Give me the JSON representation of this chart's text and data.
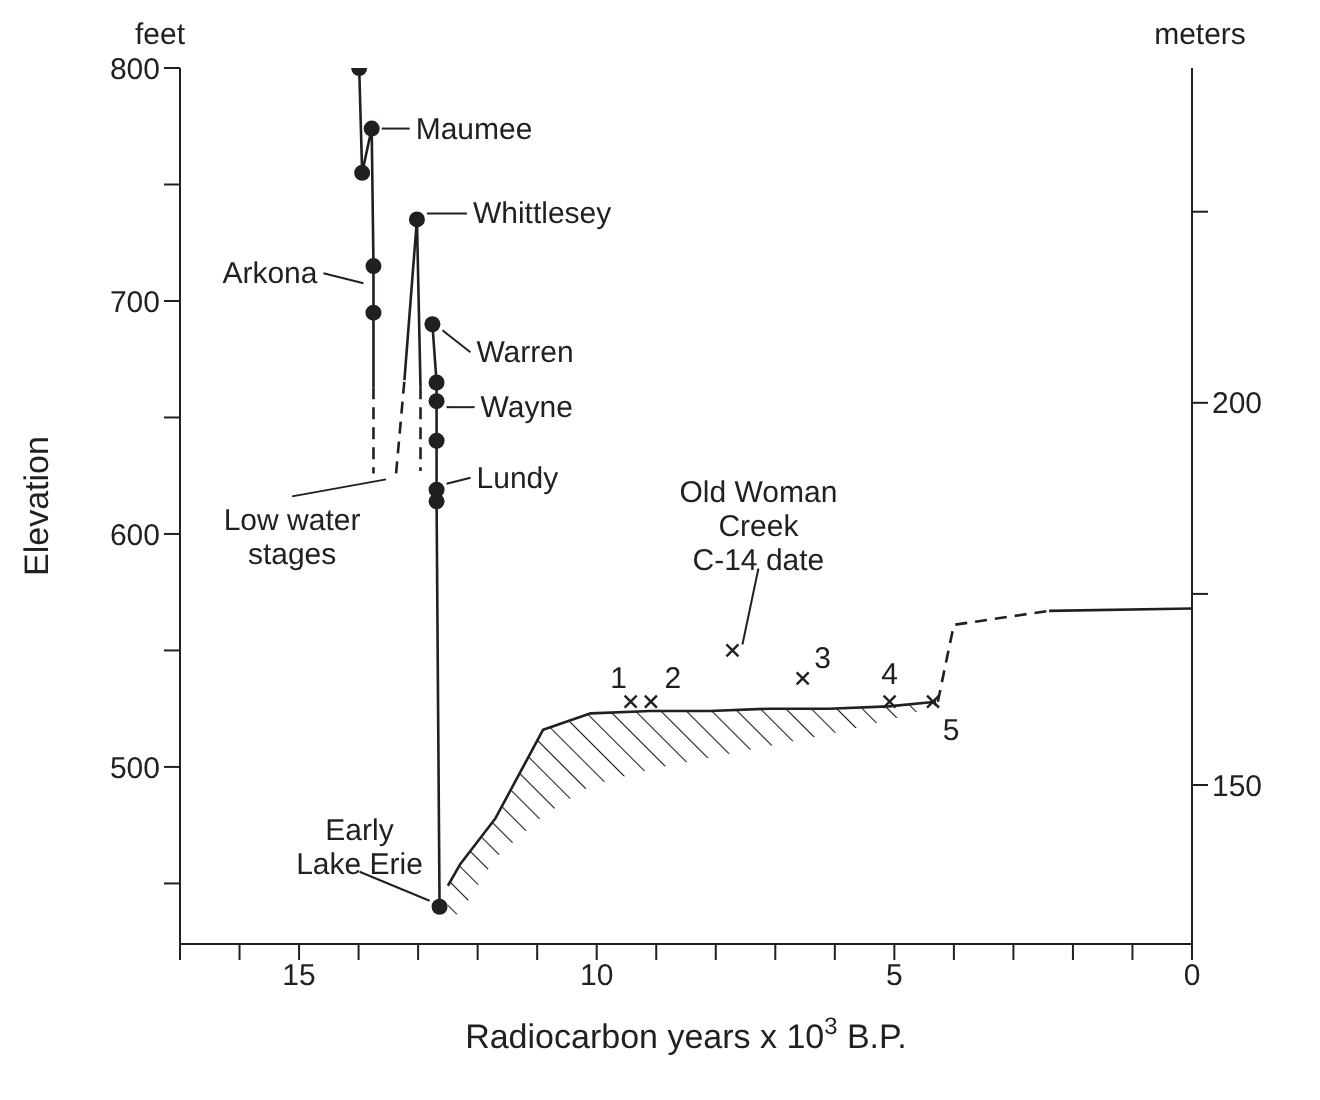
{
  "chart_data": {
    "type": "line",
    "xlabel": "Radiocarbon years x 10$^{3}$ B.P.",
    "ylabel": "Elevation",
    "y2label": "meters",
    "xlim": [
      17,
      0
    ],
    "xticks": [
      {
        "value": 17,
        "label": null
      },
      {
        "value": 16,
        "label": null
      },
      15,
      {
        "value": 14,
        "label": null
      },
      {
        "value": 13,
        "label": null
      },
      {
        "value": 12,
        "label": null
      },
      {
        "value": 11,
        "label": null
      },
      10,
      {
        "value": 9,
        "label": null
      },
      {
        "value": 8,
        "label": null
      },
      {
        "value": 7,
        "label": null
      },
      {
        "value": 6,
        "label": null
      },
      5,
      {
        "value": 4,
        "label": null
      },
      {
        "value": 3,
        "label": null
      },
      {
        "value": 2,
        "label": null
      },
      {
        "value": 1,
        "label": null
      },
      0
    ],
    "ylim": [
      424,
      800
    ],
    "yticks": [
      {
        "value": 450,
        "label": null
      },
      500,
      {
        "value": 550,
        "label": null
      },
      600,
      {
        "value": 650,
        "label": null
      },
      700,
      {
        "value": 750,
        "label": null
      },
      800
    ],
    "y2lim": [
      129.2,
      243.8
    ],
    "y2ticks": [
      150,
      {
        "value": 175,
        "label": null
      },
      200,
      {
        "value": 225,
        "label": null
      }
    ],
    "grid": false,
    "series": [
      {
        "color": "#231f20",
        "line_style": "solid",
        "marker": "none",
        "x": [
          13.99,
          13.94,
          13.78,
          13.75,
          13.75,
          13.75
        ],
        "values": [
          800,
          755,
          774,
          715,
          695,
          663
        ]
      },
      {
        "color": "#231f20",
        "line_style": "dashed",
        "marker": "none",
        "x": [
          13.75,
          13.75
        ],
        "values": [
          663,
          626
        ]
      },
      {
        "color": "#231f20",
        "line_style": "dashed",
        "marker": "none",
        "x": [
          13.37,
          13.23
        ],
        "values": [
          626,
          666
        ]
      },
      {
        "color": "#231f20",
        "line_style": "solid",
        "marker": "none",
        "x": [
          13.23,
          13.02,
          12.96
        ],
        "values": [
          666,
          735,
          663
        ]
      },
      {
        "color": "#231f20",
        "line_style": "dashed",
        "marker": "none",
        "x": [
          12.96,
          12.96
        ],
        "values": [
          663,
          627
        ]
      },
      {
        "color": "#231f20",
        "line_style": "solid",
        "marker": "none",
        "x": [
          12.76,
          12.69,
          12.69,
          12.69,
          12.69,
          12.69,
          12.64
        ],
        "values": [
          690,
          665,
          657,
          640,
          619,
          614,
          440
        ]
      },
      {
        "type": "scatter",
        "color": "#231f20",
        "marker": "circle",
        "x": [
          13.99,
          13.94,
          13.78,
          13.75,
          13.75,
          13.02,
          12.76,
          12.69,
          12.69,
          12.69,
          12.69,
          12.69,
          12.64
        ],
        "values": [
          800,
          755,
          774,
          715,
          695,
          735,
          690,
          665,
          657,
          640,
          619,
          614,
          440
        ]
      },
      {
        "color": "#231f20",
        "line_style": "solid",
        "marker": "none",
        "x": [
          12.5,
          12.3,
          11.7,
          11.3,
          10.9,
          10.1,
          9.1,
          8.1,
          7.1,
          6.1,
          5.1,
          4.3
        ],
        "values": [
          449,
          458,
          478,
          497,
          516,
          523,
          524,
          524,
          525,
          525,
          526,
          528
        ],
        "lower": [
          436,
          437,
          461,
          470,
          479,
          492,
          499,
          504,
          509,
          514,
          520,
          526
        ],
        "upper": [
          449,
          458,
          478,
          497,
          516,
          523,
          524,
          524,
          525,
          525,
          526,
          528
        ]
      },
      {
        "color": "#231f20",
        "line_style": "dashed",
        "marker": "none",
        "x": [
          4.27,
          4.0,
          2.4
        ],
        "values": [
          528,
          561,
          567
        ]
      },
      {
        "color": "#231f20",
        "line_style": "solid",
        "marker": "none",
        "x": [
          2.4,
          0
        ],
        "values": [
          567,
          568
        ]
      },
      {
        "type": "scatter",
        "color": "#231f20",
        "marker": "cross",
        "x": [
          9.43,
          9.09,
          7.72,
          6.54,
          5.08,
          4.35
        ],
        "values": [
          528,
          528,
          550,
          538,
          528,
          528
        ]
      }
    ],
    "annotations": [
      "feet",
      {
        "text": "Maumee",
        "x": 13.78,
        "y": 774
      },
      {
        "text": "Arkona",
        "x": 13.75,
        "y": 705
      },
      {
        "text": "Whittlesey",
        "x": 13.02,
        "y": 735
      },
      {
        "text": "Warren",
        "x": 12.76,
        "y": 690
      },
      {
        "text": "Wayne",
        "x": 12.69,
        "y": 657
      },
      {
        "text": "Lundy",
        "x": 12.69,
        "y": 619
      },
      {
        "text": "Low water\nstages",
        "x": 13.37,
        "y": 626
      },
      {
        "text": "Early\nLake Erie",
        "x": 12.64,
        "y": 440
      },
      {
        "text": "Old Woman\nCreek\nC-14 date",
        "x": 7.72,
        "y": 550
      },
      {
        "text": "1",
        "x": 9.43,
        "y": 528
      },
      {
        "text": "2",
        "x": 9.09,
        "y": 528
      },
      {
        "text": "3",
        "x": 6.54,
        "y": 538
      },
      {
        "text": "4",
        "x": 5.08,
        "y": 528
      },
      {
        "text": "5",
        "x": 4.35,
        "y": 528
      }
    ]
  }
}
